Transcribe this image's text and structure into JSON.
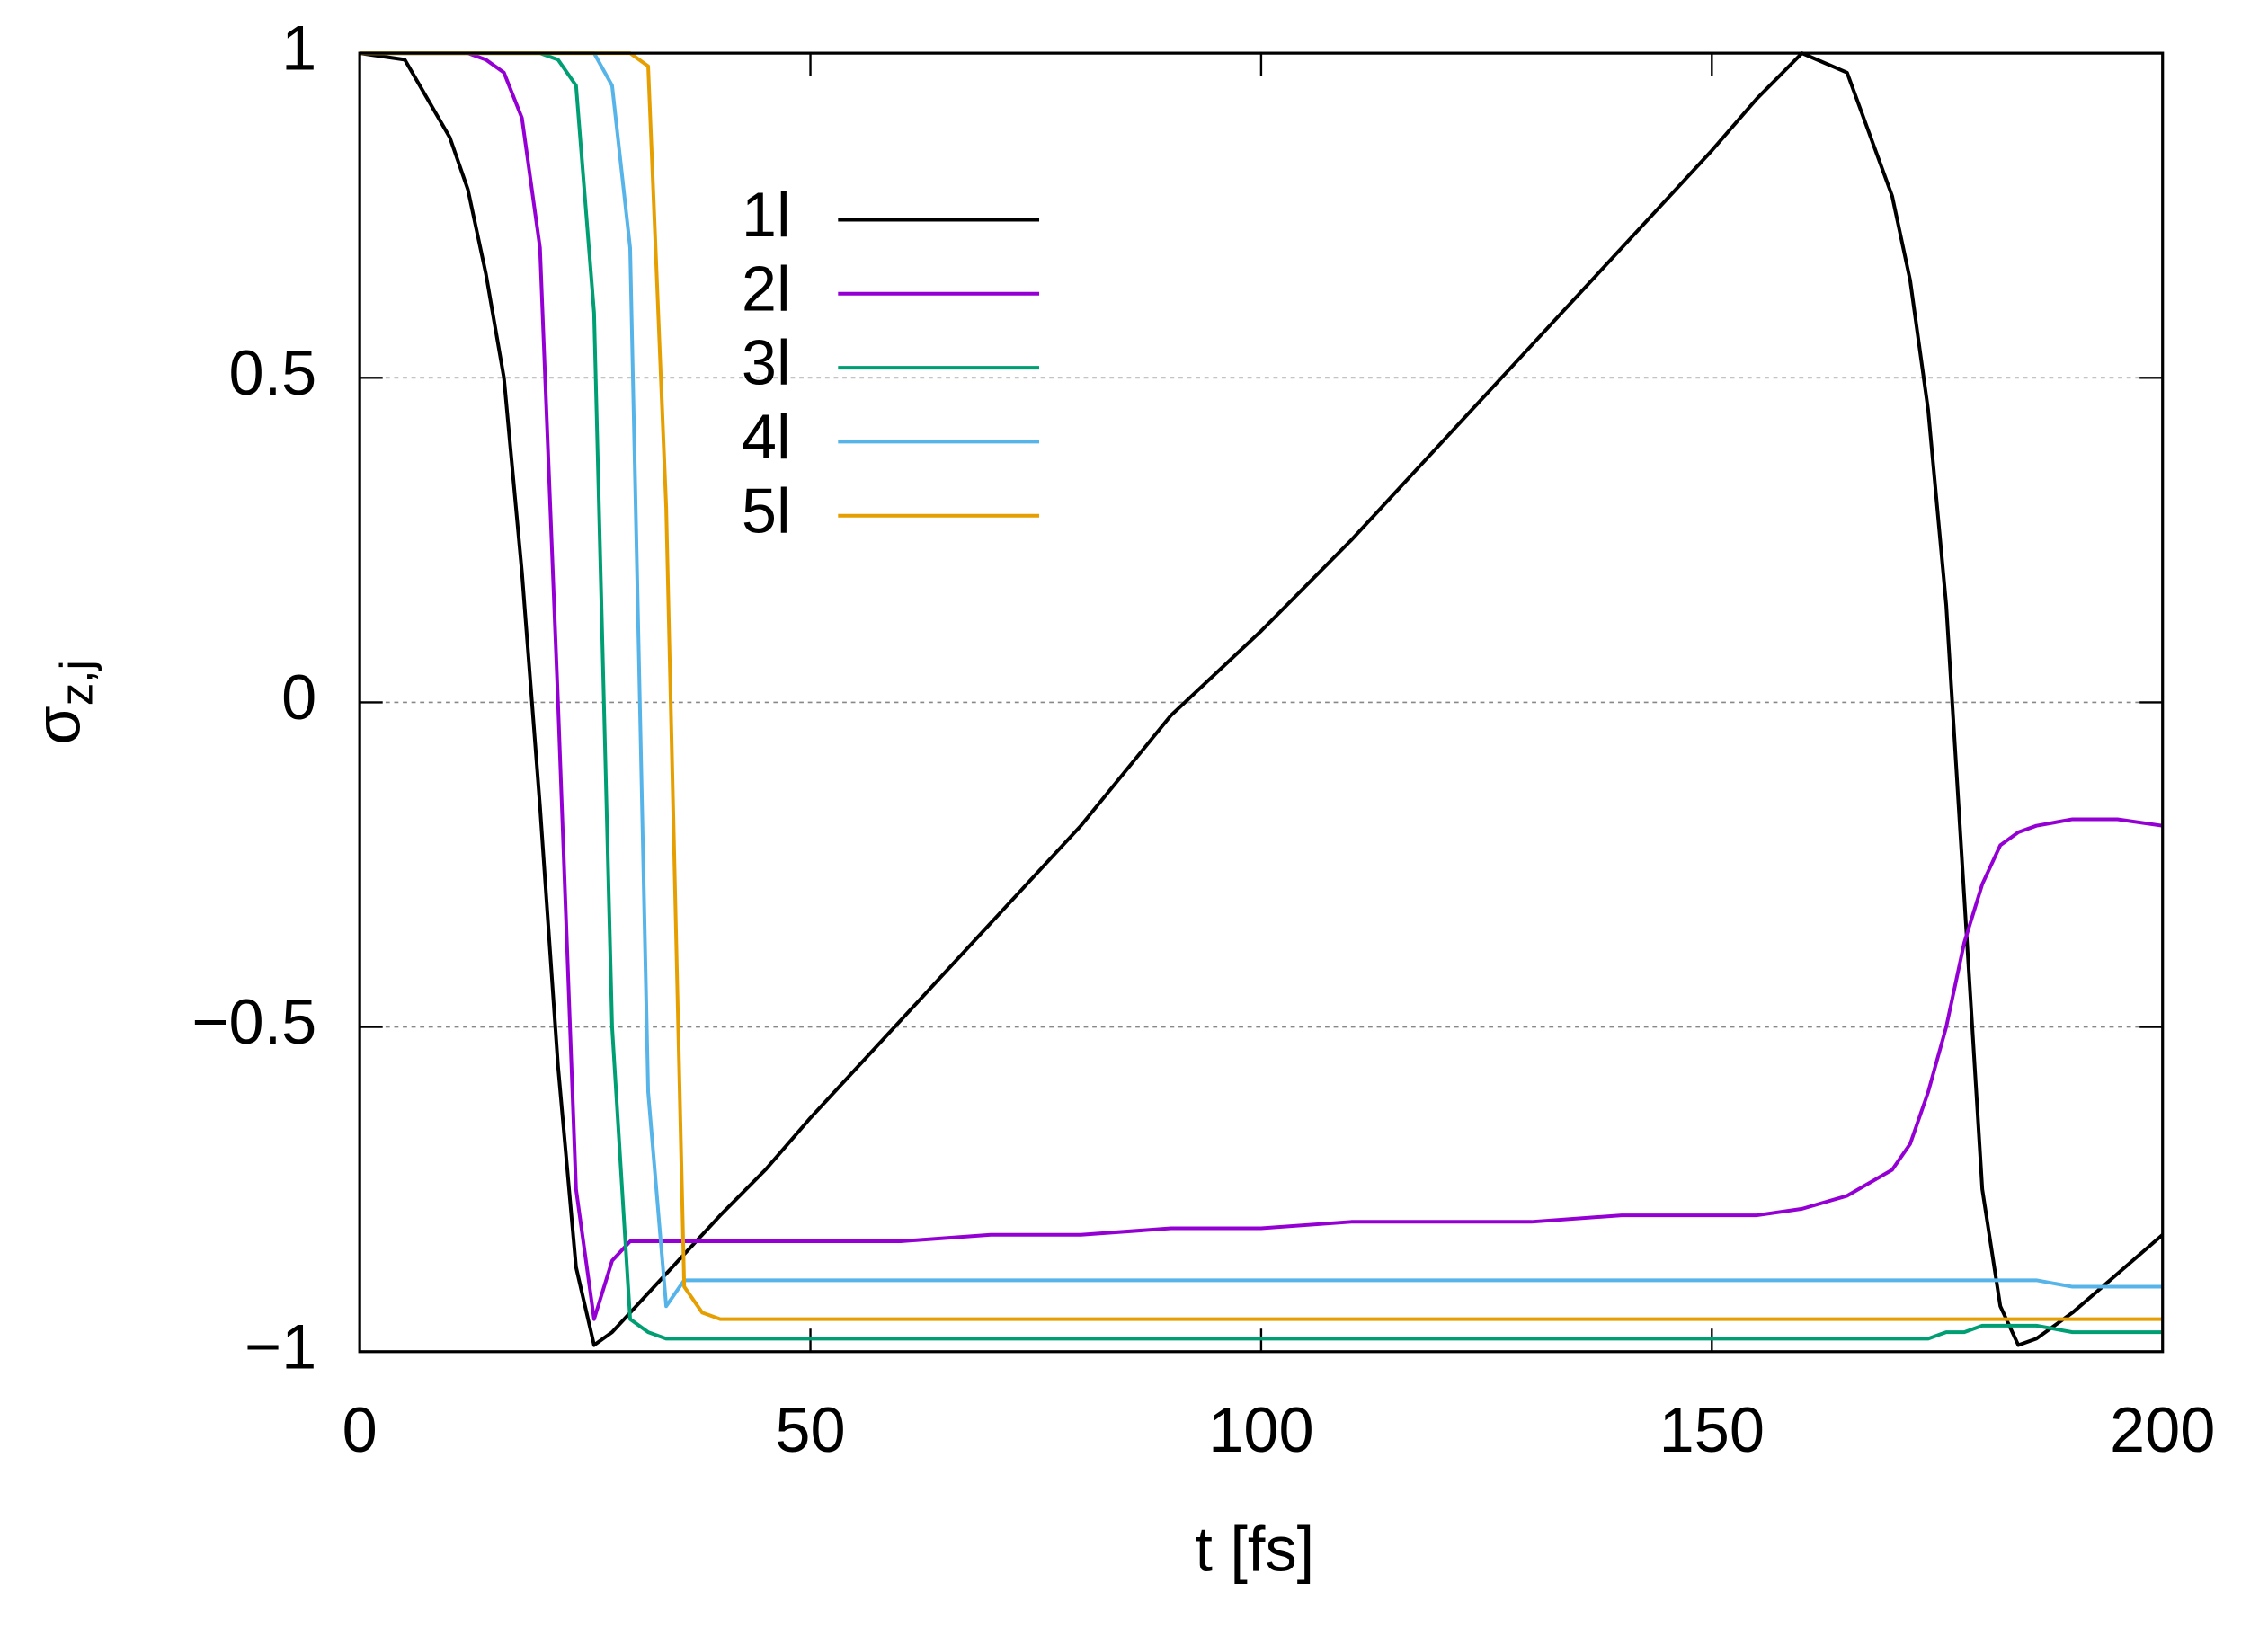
{
  "chart_data": {
    "type": "line",
    "xlabel": "t [fs]",
    "ylabel": {
      "symbol": "σ",
      "subscript": "z,j"
    },
    "xlim": [
      0,
      200
    ],
    "xticks": [
      0,
      50,
      100,
      150,
      200
    ],
    "ylim": [
      -1,
      1
    ],
    "yticks": [
      {
        "value": -1,
        "label": "−1"
      },
      {
        "value": -0.5,
        "label": "−0.5"
      },
      0,
      0.5,
      1
    ],
    "grid": "y",
    "legend": "upper-left",
    "x": [
      0,
      5,
      10,
      12,
      14,
      16,
      18,
      20,
      22,
      24,
      26,
      28,
      30,
      32,
      34,
      36,
      38,
      40,
      45,
      50,
      60,
      70,
      80,
      90,
      100,
      110,
      120,
      130,
      140,
      150,
      155,
      160,
      165,
      170,
      172,
      174,
      176,
      178,
      180,
      182,
      184,
      186,
      190,
      195,
      200
    ],
    "series": [
      {
        "name": "1l",
        "color": "#000000",
        "values": [
          1,
          0.99,
          0.87,
          0.79,
          0.66,
          0.5,
          0.2,
          -0.16,
          -0.56,
          -0.87,
          -0.99,
          -0.97,
          -0.94,
          -0.91,
          -0.88,
          -0.85,
          -0.82,
          -0.79,
          -0.72,
          -0.64,
          -0.49,
          -0.34,
          -0.19,
          -0.02,
          0.11,
          0.25,
          0.4,
          0.55,
          0.7,
          0.85,
          0.93,
          1,
          0.97,
          0.78,
          0.65,
          0.45,
          0.15,
          -0.3,
          -0.75,
          -0.93,
          -0.99,
          -0.98,
          -0.94,
          -0.88,
          -0.82
        ]
      },
      {
        "name": "2l",
        "color": "#9400d3",
        "values": [
          1,
          1,
          1,
          1,
          0.99,
          0.97,
          0.9,
          0.7,
          0,
          -0.75,
          -0.95,
          -0.86,
          -0.83,
          -0.83,
          -0.83,
          -0.83,
          -0.83,
          -0.83,
          -0.83,
          -0.83,
          -0.83,
          -0.82,
          -0.82,
          -0.81,
          -0.81,
          -0.8,
          -0.8,
          -0.8,
          -0.79,
          -0.79,
          -0.79,
          -0.78,
          -0.76,
          -0.72,
          -0.68,
          -0.6,
          -0.5,
          -0.37,
          -0.28,
          -0.22,
          -0.2,
          -0.19,
          -0.18,
          -0.18,
          -0.19
        ]
      },
      {
        "name": "3l",
        "color": "#009e73",
        "values": [
          1,
          1,
          1,
          1,
          1,
          1,
          1,
          1,
          0.99,
          0.95,
          0.6,
          -0.5,
          -0.95,
          -0.97,
          -0.98,
          -0.98,
          -0.98,
          -0.98,
          -0.98,
          -0.98,
          -0.98,
          -0.98,
          -0.98,
          -0.98,
          -0.98,
          -0.98,
          -0.98,
          -0.98,
          -0.98,
          -0.98,
          -0.98,
          -0.98,
          -0.98,
          -0.98,
          -0.98,
          -0.98,
          -0.97,
          -0.97,
          -0.96,
          -0.96,
          -0.96,
          -0.96,
          -0.97,
          -0.97,
          -0.97
        ]
      },
      {
        "name": "4l",
        "color": "#56b4e9",
        "values": [
          1,
          1,
          1,
          1,
          1,
          1,
          1,
          1,
          1,
          1,
          1,
          0.95,
          0.7,
          -0.6,
          -0.93,
          -0.89,
          -0.89,
          -0.89,
          -0.89,
          -0.89,
          -0.89,
          -0.89,
          -0.89,
          -0.89,
          -0.89,
          -0.89,
          -0.89,
          -0.89,
          -0.89,
          -0.89,
          -0.89,
          -0.89,
          -0.89,
          -0.89,
          -0.89,
          -0.89,
          -0.89,
          -0.89,
          -0.89,
          -0.89,
          -0.89,
          -0.89,
          -0.9,
          -0.9,
          -0.9
        ]
      },
      {
        "name": "5l",
        "color": "#e69f00",
        "values": [
          1,
          1,
          1,
          1,
          1,
          1,
          1,
          1,
          1,
          1,
          1,
          1,
          1,
          0.98,
          0.3,
          -0.9,
          -0.94,
          -0.95,
          -0.95,
          -0.95,
          -0.95,
          -0.95,
          -0.95,
          -0.95,
          -0.95,
          -0.95,
          -0.95,
          -0.95,
          -0.95,
          -0.95,
          -0.95,
          -0.95,
          -0.95,
          -0.95,
          -0.95,
          -0.95,
          -0.95,
          -0.95,
          -0.95,
          -0.95,
          -0.95,
          -0.95,
          -0.95,
          -0.95,
          -0.95
        ]
      }
    ]
  }
}
